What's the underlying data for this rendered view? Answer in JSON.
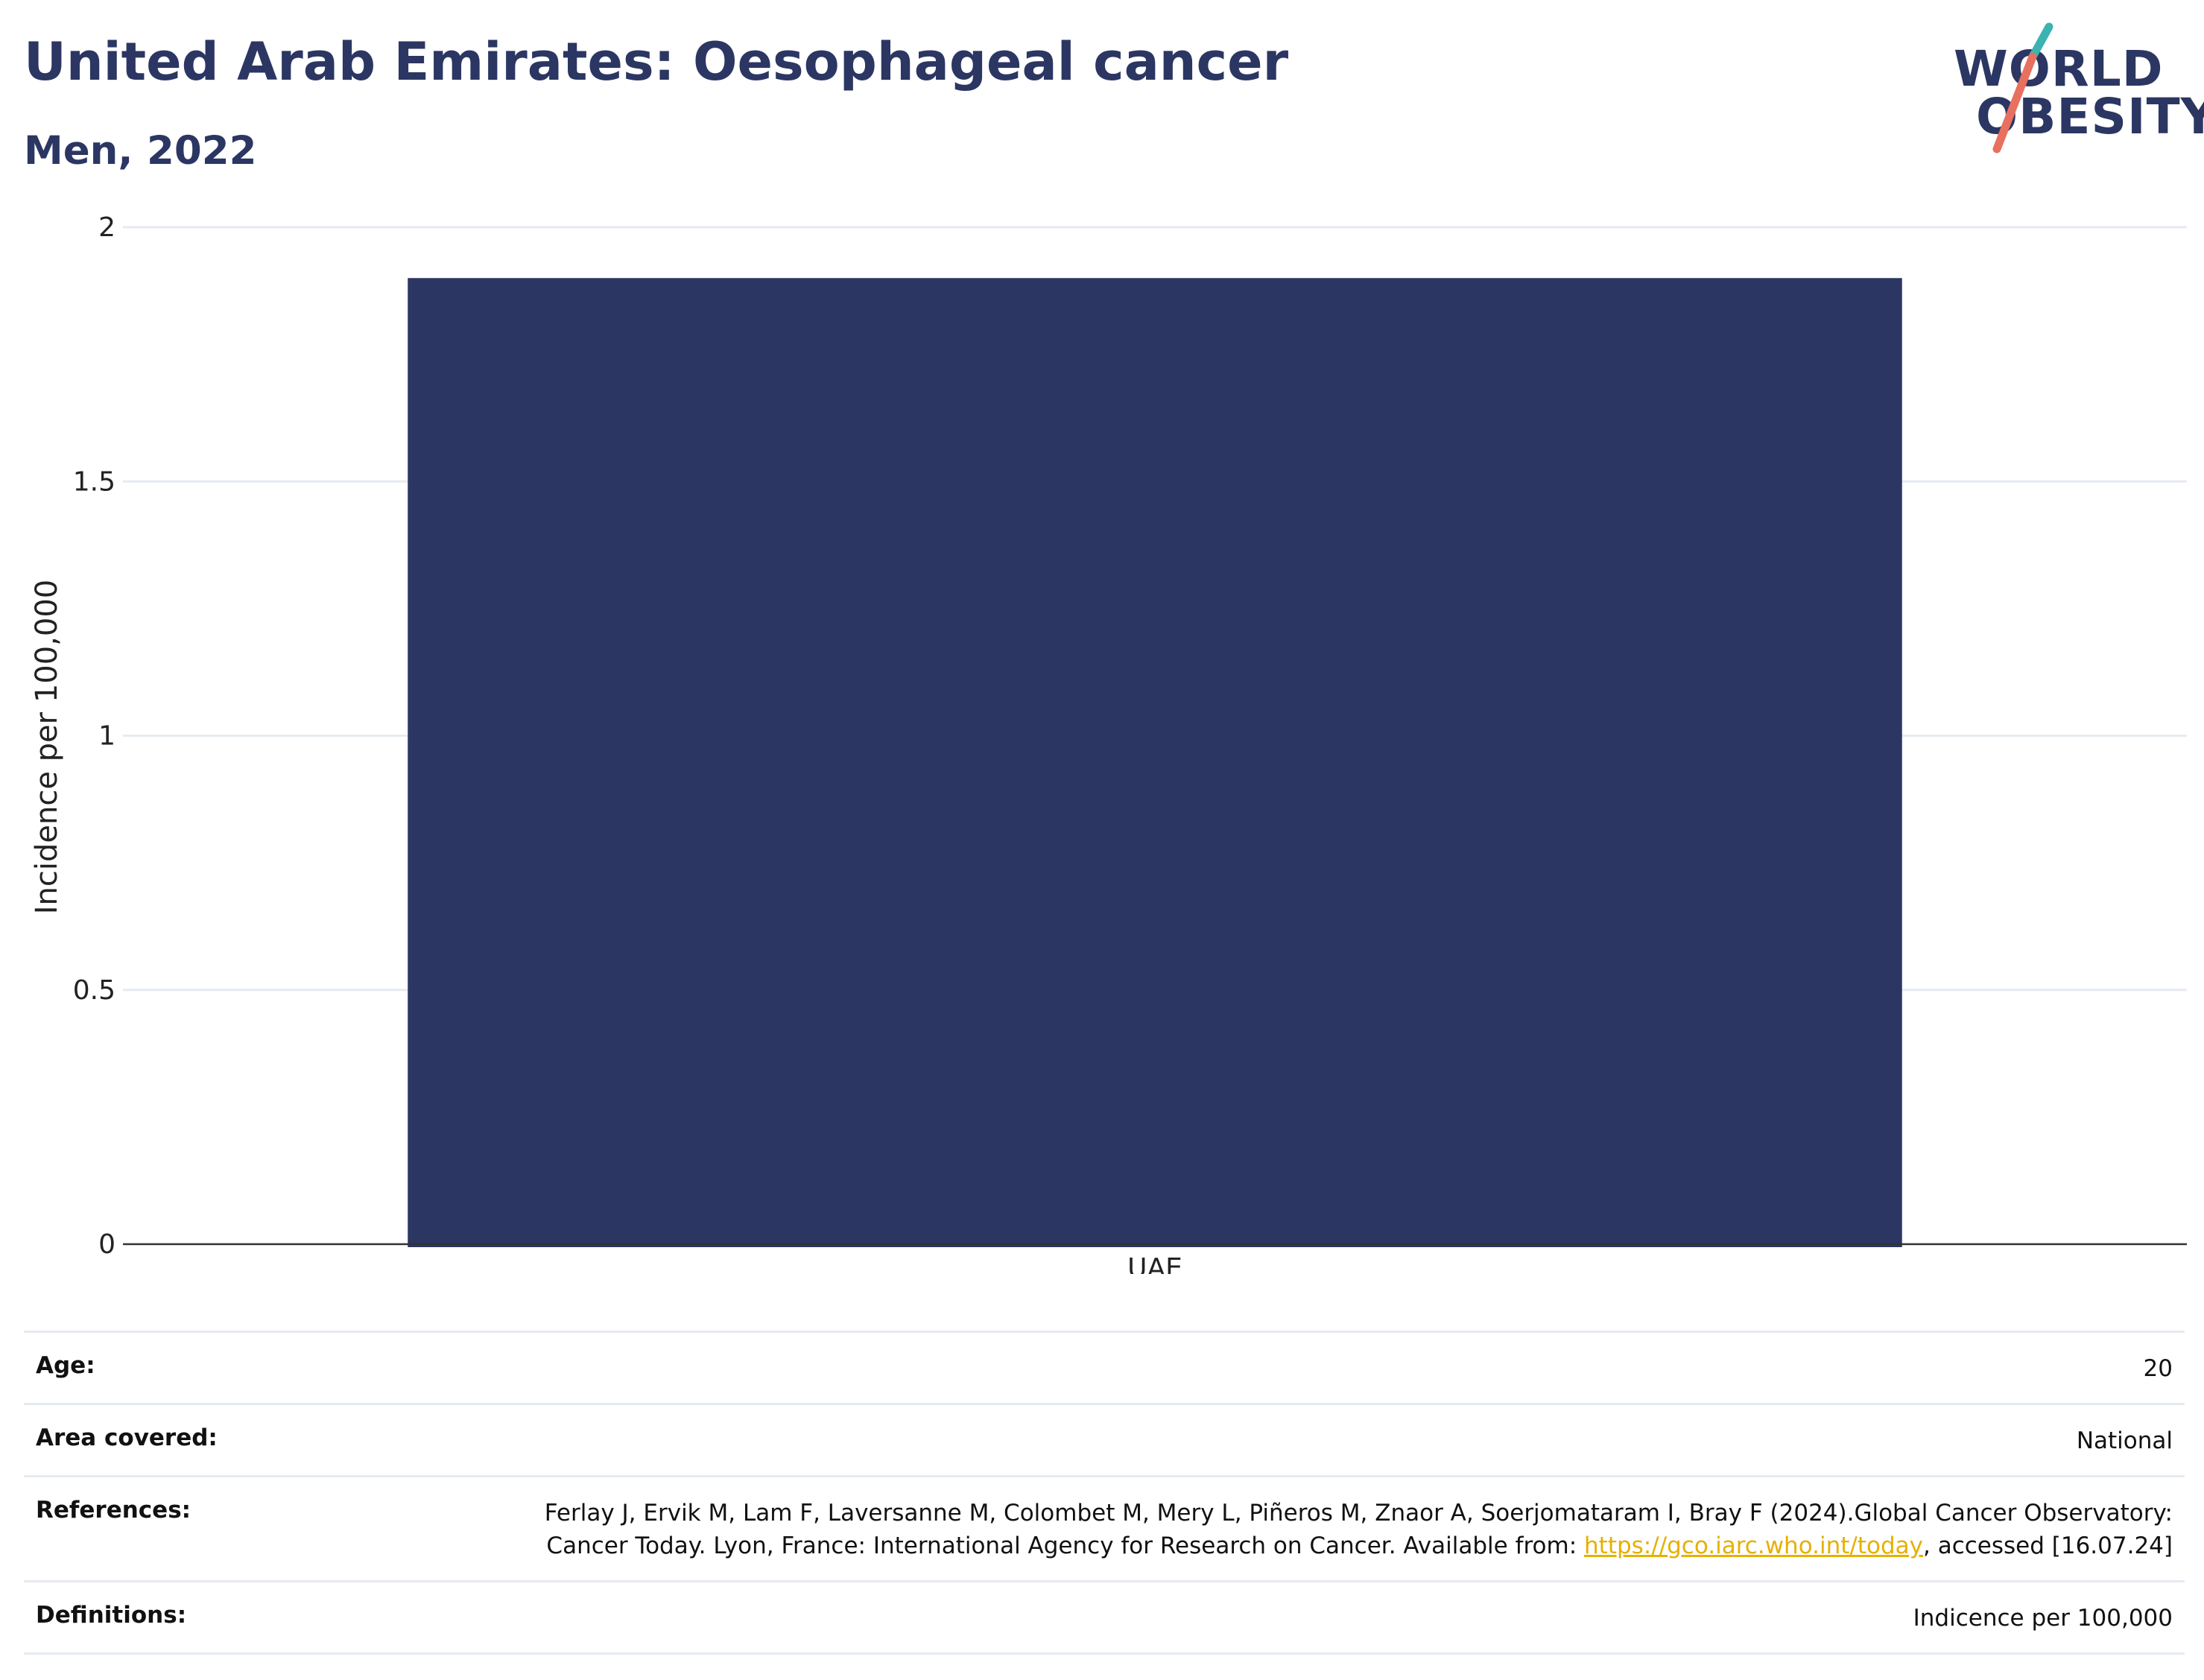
{
  "header": {
    "title": "United Arab Emirates: Oesophageal cancer",
    "subtitle": "Men, 2022"
  },
  "logo": {
    "line1": "WORLD",
    "line2": "OBESITY",
    "colors": {
      "text": "#2b3663",
      "slash_top": "#3bb3b0",
      "slash_bottom": "#e8705e"
    }
  },
  "chart_data": {
    "type": "bar",
    "categories": [
      "UAE"
    ],
    "values": [
      1.9
    ],
    "title": "United Arab Emirates: Oesophageal cancer",
    "subtitle": "Men, 2022",
    "xlabel": "",
    "ylabel": "Incidence per 100,000",
    "ylim": [
      0,
      2
    ],
    "yticks": [
      0,
      0.5,
      1,
      1.5,
      2
    ],
    "ytick_labels": [
      "0",
      "0.5",
      "1",
      "1.5",
      "2"
    ],
    "grid": true,
    "legend": "none",
    "bar_color": "#2b3663"
  },
  "info": {
    "age_label": "Age:",
    "age_value": "20",
    "area_label": "Area covered:",
    "area_value": "National",
    "references_label": "References:",
    "references_text_1": "Ferlay J, Ervik M, Lam F, Laversanne M, Colombet M, Mery L, Piñeros M, Znaor A, Soerjomataram I, Bray F (2024).Global Cancer Observatory: Cancer Today. Lyon, France: International Agency for Research on Cancer. Available from: ",
    "references_link": "https://gco.iarc.who.int/today",
    "references_text_2": ", accessed [16.07.24]",
    "definitions_label": "Definitions:",
    "definitions_value": "Indicence per 100,000"
  }
}
